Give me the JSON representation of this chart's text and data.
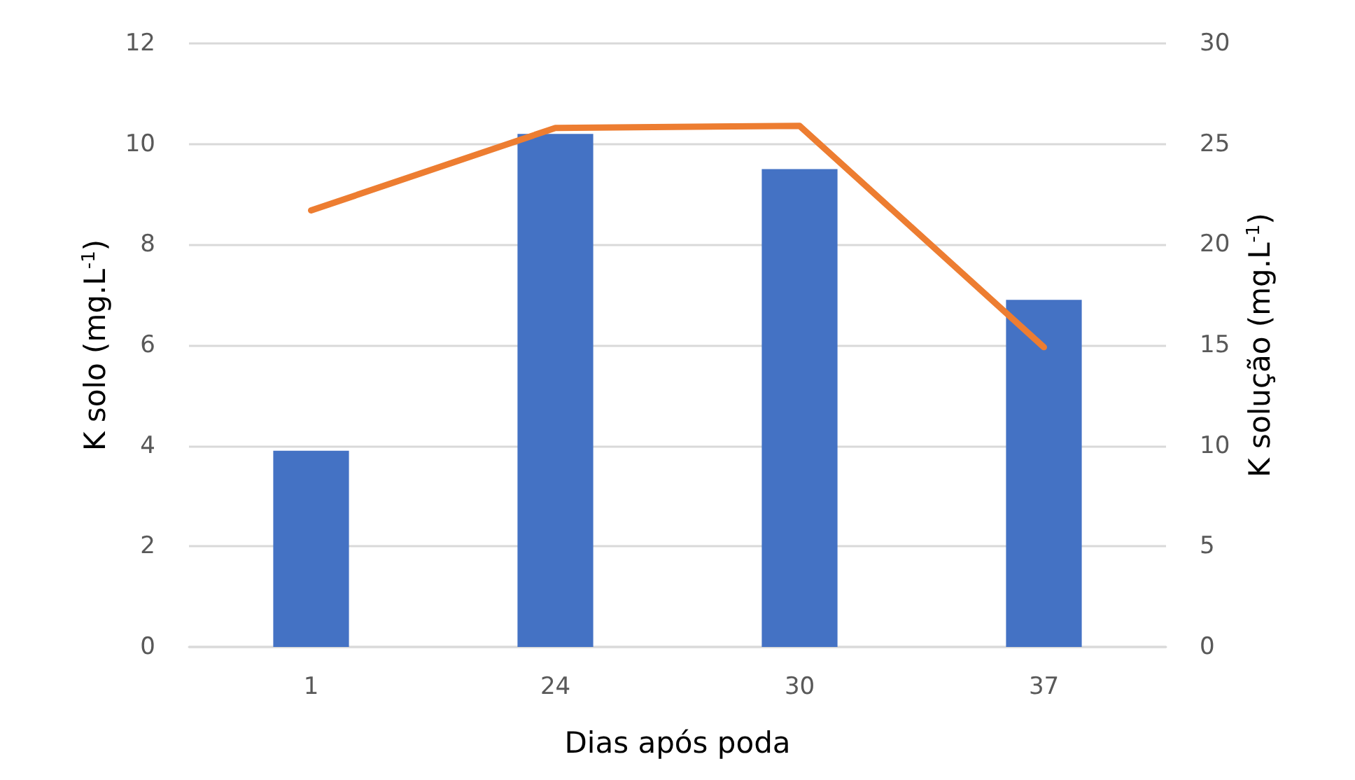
{
  "chart_data": {
    "type": "bar",
    "xlabel": "Dias após poda",
    "ylabel": "K solo (mg.L$^{-1}$)",
    "y2label": "K solução (mg.L$^{-1}$)",
    "categories": [
      "1",
      "24",
      "30",
      "37"
    ],
    "series": [
      {
        "color": "#4472c4",
        "values": [
          3.9,
          10.2,
          9.5,
          6.9
        ]
      },
      {
        "type": "line",
        "axis": "y2",
        "color": "#ed7d31",
        "values": [
          21.7,
          25.8,
          25.9,
          14.9
        ]
      }
    ],
    "ylim": [
      0,
      12
    ],
    "yticks": [
      0,
      2,
      4,
      6,
      8,
      10,
      12
    ],
    "y2lim": [
      0,
      30
    ],
    "y2ticks": [
      0,
      5,
      10,
      15,
      20,
      25,
      30
    ],
    "grid": "y",
    "marker": "none"
  }
}
